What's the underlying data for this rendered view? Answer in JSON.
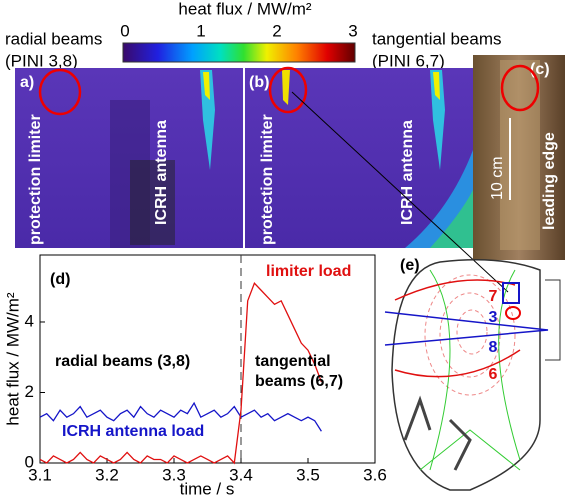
{
  "colorbar": {
    "label": "heat flux / MW/m²",
    "lim": [
      0,
      3
    ],
    "ticks": [
      0,
      1,
      2,
      3
    ]
  },
  "top_labels": {
    "left_title": "radial beams",
    "left_sub": "(PINI 3,8)",
    "right_title": "tangential beams",
    "right_sub": "(PINI 6,7)"
  },
  "panels": {
    "a": {
      "tag": "a)",
      "limiter": "protection limiter",
      "antenna": "ICRH antenna"
    },
    "b": {
      "tag": "(b)",
      "limiter": "protection limiter",
      "antenna": "ICRH antenna"
    },
    "c": {
      "tag": "(c)",
      "scale": "10 cm",
      "edge": "leading edge"
    },
    "e": {
      "tag": "(e)",
      "beams": [
        {
          "text": "7",
          "color": "#e01010"
        },
        {
          "text": "3",
          "color": "#1515c8"
        },
        {
          "text": "8",
          "color": "#1515c8"
        },
        {
          "text": "6",
          "color": "#e01010"
        }
      ]
    }
  },
  "chart_data": {
    "type": "line",
    "tag": "(d)",
    "xlabel": "time / s",
    "ylabel": "heat flux / MW/m²",
    "x": [
      3.1,
      3.11,
      3.12,
      3.13,
      3.14,
      3.15,
      3.16,
      3.17,
      3.18,
      3.19,
      3.2,
      3.21,
      3.22,
      3.23,
      3.24,
      3.25,
      3.26,
      3.27,
      3.28,
      3.29,
      3.3,
      3.31,
      3.32,
      3.33,
      3.34,
      3.35,
      3.36,
      3.37,
      3.38,
      3.39,
      3.4,
      3.41,
      3.42,
      3.43,
      3.44,
      3.45,
      3.46,
      3.47,
      3.48,
      3.49,
      3.5,
      3.51,
      3.52
    ],
    "series": [
      {
        "name": "ICRH antenna load",
        "color": "#1515c8",
        "values": [
          1.3,
          1.4,
          1.2,
          1.5,
          1.3,
          1.4,
          1.6,
          1.3,
          1.4,
          1.5,
          1.3,
          1.2,
          1.4,
          1.5,
          1.3,
          1.6,
          1.4,
          1.3,
          1.5,
          1.4,
          1.3,
          1.5,
          1.4,
          1.7,
          1.3,
          1.4,
          1.5,
          1.3,
          1.4,
          1.6,
          1.3,
          1.4,
          1.5,
          1.3,
          1.4,
          1.2,
          1.3,
          1.4,
          1.3,
          1.2,
          1.3,
          1.2,
          0.9
        ]
      },
      {
        "name": "limiter load",
        "color": "#e01010",
        "values": [
          0.1,
          0,
          0.2,
          0.1,
          0,
          0.1,
          0.3,
          0.1,
          0,
          0.2,
          0.1,
          0,
          0.1,
          0.3,
          0.1,
          0,
          0.2,
          0.1,
          0.1,
          0,
          0.2,
          0.1,
          0,
          0.1,
          0.2,
          0.1,
          0,
          0.1,
          0.2,
          0,
          1.5,
          4.6,
          5.1,
          4.9,
          4.7,
          4.5,
          4.6,
          4.2,
          3.8,
          3.4,
          3.2,
          2.8,
          2.3
        ]
      }
    ],
    "annotations": [
      "radial beams (3,8)",
      "tangential",
      "beams (6,7)"
    ],
    "vline": 3.4,
    "xlim": [
      3.1,
      3.6
    ],
    "xticks": [
      3.1,
      3.2,
      3.3,
      3.4,
      3.5,
      3.6
    ],
    "ylim": [
      0,
      5.9
    ],
    "yticks": [
      0,
      2,
      4
    ]
  }
}
